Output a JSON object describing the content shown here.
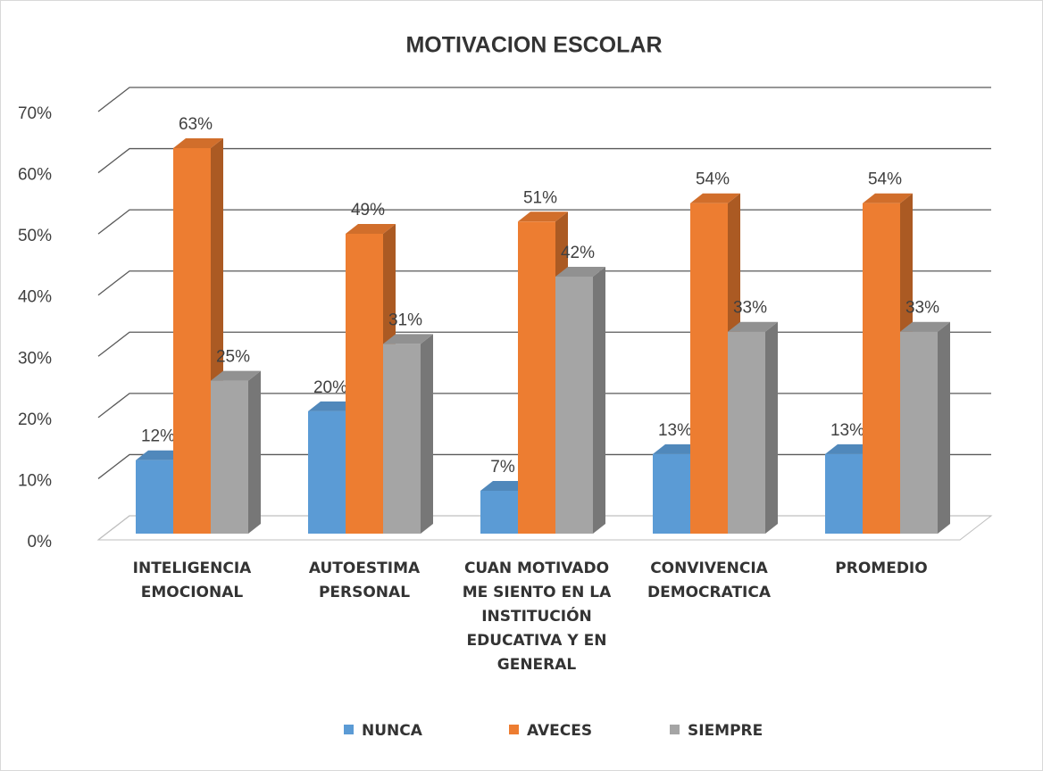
{
  "chart_data": {
    "type": "bar3d",
    "title": "MOTIVACION ESCOLAR",
    "categories": [
      "INTELIGENCIA EMOCIONAL",
      "AUTOESTIMA PERSONAL",
      "CUAN MOTIVADO ME SIENTO EN LA INSTITUCIÓN EDUCATIVA Y EN GENERAL",
      "CONVIVENCIA DEMOCRATICA",
      "PROMEDIO"
    ],
    "series": [
      {
        "name": "NUNCA",
        "color": "#5b9bd5",
        "values": [
          12,
          20,
          7,
          13,
          13
        ],
        "value_labels": [
          "12%",
          "20%",
          "7%",
          "13%",
          "13%"
        ]
      },
      {
        "name": "AVECES",
        "color": "#ed7d31",
        "values": [
          63,
          49,
          51,
          54,
          54
        ],
        "value_labels": [
          "63%",
          "49%",
          "51%",
          "54%",
          "54%"
        ]
      },
      {
        "name": "SIEMPRE",
        "color": "#a5a5a5",
        "values": [
          25,
          31,
          42,
          33,
          33
        ],
        "value_labels": [
          "25%",
          "31%",
          "42%",
          "33%",
          "33%"
        ]
      }
    ],
    "ylim": [
      0,
      70
    ],
    "yticks": [
      {
        "value": 0,
        "label": "0%"
      },
      {
        "value": 10,
        "label": "10%"
      },
      {
        "value": 20,
        "label": "20%"
      },
      {
        "value": 30,
        "label": "30%"
      },
      {
        "value": 40,
        "label": "40%"
      },
      {
        "value": 50,
        "label": "50%"
      },
      {
        "value": 60,
        "label": "60%"
      },
      {
        "value": 70,
        "label": "70%"
      }
    ],
    "grid": true,
    "legend": "bottom"
  }
}
